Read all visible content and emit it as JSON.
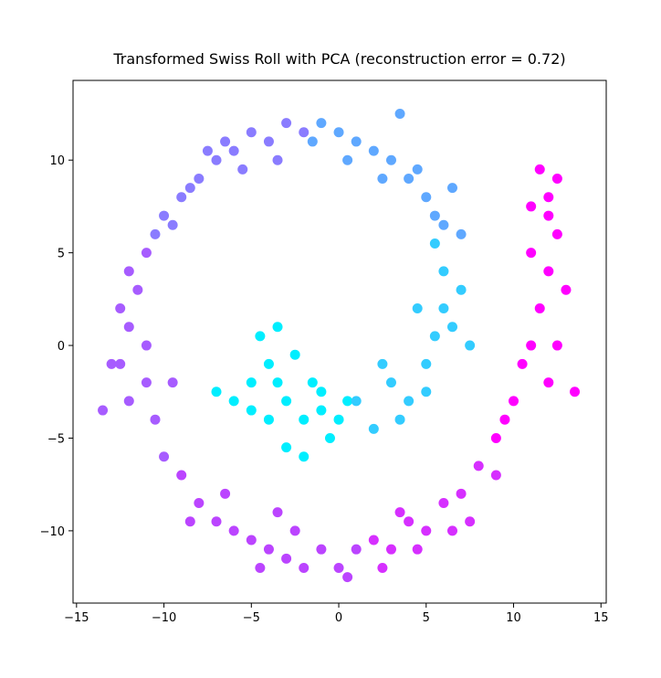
{
  "chart_data": {
    "type": "scatter",
    "title": "Transformed Swiss Roll with PCA (reconstruction error = 0.72)",
    "xlim": [
      -15.2,
      15.3
    ],
    "ylim": [
      -13.9,
      14.3
    ],
    "xticks": [
      {
        "value": -15,
        "label": "−15"
      },
      {
        "value": -10,
        "label": "−10"
      },
      {
        "value": -5,
        "label": "−5"
      },
      0,
      5,
      10,
      15
    ],
    "yticks": [
      {
        "value": -10,
        "label": "−10"
      },
      {
        "value": -5,
        "label": "−5"
      },
      0,
      5,
      10
    ],
    "series": [
      {
        "color": "#00eeff",
        "x": [
          -7,
          -6,
          -5,
          -4.5,
          -4,
          -3.5,
          -3,
          -2.5,
          -2,
          -1.5,
          -1,
          -0.5,
          0,
          -3,
          -4,
          -2,
          -1,
          -5,
          -3.5,
          0.5
        ],
        "values": [
          -2.5,
          -3,
          -2,
          0.5,
          -1,
          1,
          -3,
          -0.5,
          -4,
          -2,
          -3.5,
          -5,
          -4,
          -5.5,
          -4,
          -6,
          -2.5,
          -3.5,
          -2,
          -3
        ]
      },
      {
        "color": "#33ccff",
        "x": [
          1,
          2,
          3,
          4,
          5,
          5.5,
          6,
          6.5,
          5,
          6,
          7,
          4.5,
          2.5,
          3.5,
          7.5,
          5.5
        ],
        "values": [
          -3,
          -4.5,
          -2,
          -3,
          -1,
          0.5,
          2,
          1,
          -2.5,
          4,
          3,
          2,
          -1,
          -4,
          0,
          5.5
        ]
      },
      {
        "color": "#5fa8ff",
        "x": [
          6,
          5,
          4,
          3,
          2,
          1,
          0,
          -1,
          5.5,
          4.5,
          6.5,
          7,
          2.5,
          0.5,
          -1.5,
          3.5
        ],
        "values": [
          6.5,
          8,
          9,
          10,
          10.5,
          11,
          11.5,
          12,
          7,
          9.5,
          8.5,
          6,
          9,
          10,
          11,
          12.5
        ]
      },
      {
        "color": "#8a7cff",
        "x": [
          -2,
          -3,
          -4,
          -5,
          -6,
          -7,
          -8,
          -9,
          -10,
          -3.5,
          -5.5,
          -7.5,
          -9.5,
          -10.5,
          -6.5,
          -8.5
        ],
        "values": [
          11.5,
          12,
          11,
          11.5,
          10.5,
          10,
          9,
          8,
          7,
          10,
          9.5,
          10.5,
          6.5,
          6,
          11,
          8.5
        ]
      },
      {
        "color": "#a75cff",
        "x": [
          -11,
          -11.5,
          -12,
          -12.5,
          -12,
          -13,
          -11,
          -13.5,
          -12,
          -11,
          -10.5,
          -10,
          -12.5,
          -9.5
        ],
        "values": [
          5,
          3,
          1,
          -1,
          -3,
          -1,
          -2,
          -3.5,
          4,
          0,
          -4,
          -6,
          2,
          -2
        ]
      },
      {
        "color": "#bb44ff",
        "x": [
          -9,
          -8,
          -7,
          -6,
          -5,
          -4,
          -3,
          -2,
          -1,
          0,
          1,
          -6.5,
          -4.5,
          -2.5,
          -8.5,
          -3.5,
          0.5
        ],
        "values": [
          -7,
          -8.5,
          -9.5,
          -10,
          -10.5,
          -11,
          -11.5,
          -12,
          -11,
          -12,
          -11,
          -8,
          -12,
          -10,
          -9.5,
          -9,
          -12.5
        ]
      },
      {
        "color": "#d62fff",
        "x": [
          2,
          3,
          4,
          5,
          6,
          7,
          8,
          2.5,
          4.5,
          6.5,
          3.5,
          7.5,
          9
        ],
        "values": [
          -10.5,
          -11,
          -9.5,
          -10,
          -8.5,
          -8,
          -6.5,
          -12,
          -11,
          -10,
          -9,
          -9.5,
          -7
        ]
      },
      {
        "color": "#ff00ff",
        "x": [
          9,
          10,
          10.5,
          11,
          11.5,
          12,
          12.5,
          12,
          11.5,
          12,
          13,
          12.5,
          11,
          12,
          13.5,
          9.5,
          11,
          12.5
        ],
        "values": [
          -5,
          -3,
          -1,
          0,
          2,
          4,
          6,
          8,
          9.5,
          7,
          3,
          0,
          5,
          -2,
          -2.5,
          -4,
          7.5,
          9
        ]
      }
    ]
  }
}
